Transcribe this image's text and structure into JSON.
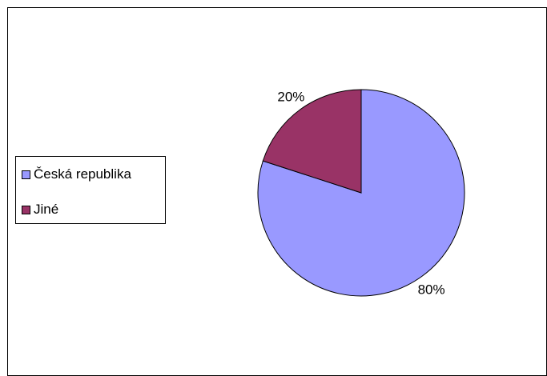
{
  "chart_data": {
    "type": "pie",
    "categories": [
      "Česká republika",
      "Jiné"
    ],
    "values": [
      80,
      20
    ],
    "labels": [
      "80%",
      "20%"
    ],
    "colors": [
      "#9999FF",
      "#993366"
    ],
    "legend_position": "left",
    "start_angle_deg": 0,
    "direction": "clockwise"
  }
}
